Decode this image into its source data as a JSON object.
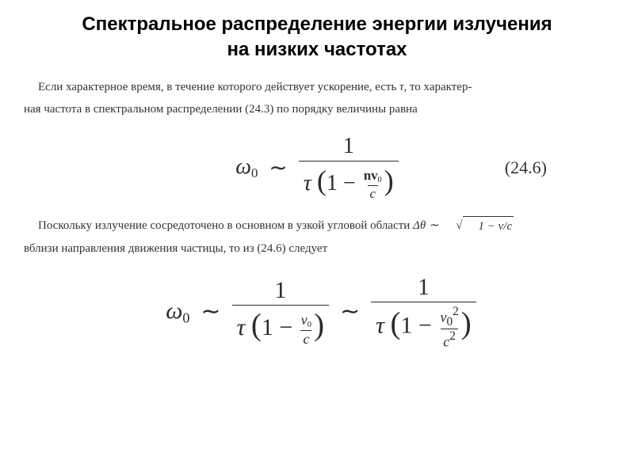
{
  "title_line1": "Спектральное распределение энергии излучения",
  "title_line2": "на низких частотах",
  "para1a": "Если характерное время, в течение которого действует ускорение, есть ",
  "para1b": ", то характер-",
  "para1c": "ная частота в спектральном распределении (24.3) по порядку величины равна",
  "eq1_num": "(24.6)",
  "para2a": "Поскольку излучение сосредоточено в основном в узкой угловой области ",
  "para2b": "вблизи направления движения частицы, то из (24.6) следует",
  "styling": {
    "title_fontsize": 24,
    "body_fontsize": 15,
    "math_fontsize": 28,
    "math_fontsize_large": 30,
    "title_color": "#000000",
    "body_color": "#333333",
    "math_color": "#2a2a2a",
    "background": "#ffffff",
    "font_title": "Arial, sans-serif",
    "font_body": "Georgia, Times New Roman, serif"
  }
}
